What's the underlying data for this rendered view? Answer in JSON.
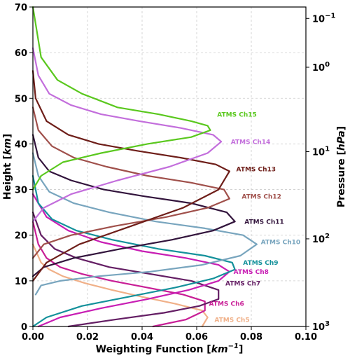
{
  "chart_data": {
    "type": "line",
    "xlabel_main": "Weighting Function [",
    "xlabel_unit": "km",
    "xlabel_sup": "−1",
    "xlabel_end": "]",
    "ylabel_main": "Height [",
    "ylabel_unit": "km",
    "ylabel_end": "]",
    "y2label_main": "Pressure [",
    "y2label_unit": "hPa",
    "y2label_end": "]",
    "xlim": [
      0.0,
      0.1
    ],
    "ylim": [
      0,
      70
    ],
    "grid": true,
    "x_ticks": [
      "0.00",
      "0.02",
      "0.04",
      "0.06",
      "0.08",
      "0.10"
    ],
    "x_tick_values": [
      0.0,
      0.02,
      0.04,
      0.06,
      0.08,
      0.1
    ],
    "y_ticks": [
      "0",
      "10",
      "20",
      "30",
      "40",
      "50",
      "60",
      "70"
    ],
    "y_tick_values": [
      0,
      10,
      20,
      30,
      40,
      50,
      60,
      70
    ],
    "pressure_ticks": [
      {
        "base": "10",
        "exp": "−1",
        "height": 67.5
      },
      {
        "base": "10",
        "exp": "0",
        "height": 56.8
      },
      {
        "base": "10",
        "exp": "1",
        "height": 38.3
      },
      {
        "base": "10",
        "exp": "2",
        "height": 19.2
      },
      {
        "base": "10",
        "exp": "3",
        "height": 0
      }
    ],
    "series": [
      {
        "name": "ATMS Ch5",
        "color": "#f0b088",
        "label_x": 0.0665,
        "label_y": 1.0,
        "x": [
          0.062,
          0.064,
          0.062,
          0.052,
          0.04,
          0.029,
          0.019,
          0.011,
          0.006,
          0.003,
          0.0
        ],
        "y": [
          0,
          2,
          3.5,
          5,
          6.5,
          8,
          9.5,
          11,
          12.5,
          14,
          18
        ]
      },
      {
        "name": "ATMS Ch6",
        "color": "#c81e96",
        "label_x": 0.0645,
        "label_y": 4.5,
        "x": [
          0.044,
          0.056,
          0.063,
          0.063,
          0.055,
          0.042,
          0.029,
          0.018,
          0.01,
          0.005,
          0.002,
          0.0
        ],
        "y": [
          0,
          1.5,
          3.5,
          5.5,
          7,
          8.5,
          10,
          11.5,
          13,
          15,
          18,
          23
        ]
      },
      {
        "name": "ATMS Ch7",
        "color": "#641e64",
        "label_x": 0.0705,
        "label_y": 9.0,
        "x": [
          0.013,
          0.03,
          0.048,
          0.061,
          0.068,
          0.068,
          0.058,
          0.043,
          0.028,
          0.016,
          0.008,
          0.003,
          0.0
        ],
        "y": [
          0,
          1.5,
          3,
          4.5,
          6,
          8,
          10,
          11.5,
          13,
          15,
          17,
          20,
          25
        ]
      },
      {
        "name": "ATMS Ch8",
        "color": "#c81eb4",
        "label_x": 0.0735,
        "label_y": 11.5,
        "x": [
          0.002,
          0.01,
          0.025,
          0.042,
          0.057,
          0.068,
          0.072,
          0.068,
          0.056,
          0.04,
          0.025,
          0.013,
          0.005,
          0.0
        ],
        "y": [
          0,
          2,
          4,
          6,
          8,
          10,
          12,
          13.5,
          15,
          16.5,
          18.5,
          21,
          24,
          29
        ]
      },
      {
        "name": "ATMS Ch9",
        "color": "#14919b",
        "label_x": 0.077,
        "label_y": 13.5,
        "x": [
          0.0,
          0.005,
          0.018,
          0.035,
          0.052,
          0.066,
          0.074,
          0.073,
          0.063,
          0.046,
          0.029,
          0.016,
          0.007,
          0.002,
          0.0
        ],
        "y": [
          0,
          2,
          4.5,
          6.5,
          8.5,
          10.5,
          12.5,
          14,
          15.5,
          17,
          19,
          21,
          23.5,
          27,
          33
        ]
      },
      {
        "name": "ATMS Ch10",
        "color": "#78a5be",
        "label_x": 0.0835,
        "label_y": 18.0,
        "x": [
          0.001,
          0.003,
          0.01,
          0.024,
          0.043,
          0.062,
          0.076,
          0.082,
          0.077,
          0.063,
          0.045,
          0.028,
          0.015,
          0.006,
          0.002,
          0.0
        ],
        "y": [
          7,
          9,
          10,
          11,
          12,
          13.5,
          15.5,
          18,
          20,
          21.5,
          23,
          25,
          27,
          29.5,
          33,
          38
        ]
      },
      {
        "name": "ATMS Ch11",
        "color": "#32143c",
        "label_x": 0.0775,
        "label_y": 22.5,
        "x": [
          0.0,
          0.004,
          0.015,
          0.032,
          0.051,
          0.066,
          0.074,
          0.071,
          0.058,
          0.041,
          0.026,
          0.014,
          0.006,
          0.002,
          0.0
        ],
        "y": [
          11,
          13,
          15,
          17,
          19,
          21,
          23,
          25,
          27,
          28.5,
          30,
          32,
          34,
          37,
          42
        ]
      },
      {
        "name": "ATMS Ch12",
        "color": "#a0504b",
        "label_x": 0.0765,
        "label_y": 28.0,
        "x": [
          0.0,
          0.004,
          0.014,
          0.03,
          0.049,
          0.064,
          0.072,
          0.07,
          0.058,
          0.042,
          0.027,
          0.015,
          0.007,
          0.002,
          0.0
        ],
        "y": [
          15,
          18,
          20,
          22,
          24,
          26,
          28,
          30,
          31.5,
          33,
          35,
          37,
          39.5,
          43,
          48
        ]
      },
      {
        "name": "ATMS Ch13",
        "color": "#6e1e19",
        "label_x": 0.0745,
        "label_y": 34.0,
        "x": [
          0.0,
          0.005,
          0.017,
          0.036,
          0.055,
          0.068,
          0.072,
          0.067,
          0.054,
          0.038,
          0.024,
          0.013,
          0.005,
          0.001,
          0.0
        ],
        "y": [
          10,
          14,
          18,
          22,
          26,
          30,
          34,
          35.5,
          37,
          38.5,
          40,
          42,
          45,
          50,
          56
        ]
      },
      {
        "name": "ATMS Ch14",
        "color": "#c36edc",
        "label_x": 0.0725,
        "label_y": 40.0,
        "x": [
          0.0,
          0.004,
          0.014,
          0.031,
          0.05,
          0.064,
          0.069,
          0.066,
          0.054,
          0.039,
          0.025,
          0.014,
          0.006,
          0.002,
          0.0
        ],
        "y": [
          23,
          26,
          29,
          32,
          35,
          38,
          40.5,
          42,
          43.5,
          45,
          46.5,
          48.5,
          51,
          55,
          61
        ]
      },
      {
        "name": "ATMS Ch15",
        "color": "#5ac81e",
        "label_x": 0.0675,
        "label_y": 46.0,
        "x": [
          0.0,
          0.003,
          0.011,
          0.025,
          0.042,
          0.058,
          0.065,
          0.064,
          0.058,
          0.046,
          0.031,
          0.018,
          0.009,
          0.003,
          0.0
        ],
        "y": [
          30,
          33,
          36,
          38,
          40,
          41.5,
          43,
          44,
          45,
          46.5,
          48,
          51,
          54,
          59,
          70
        ]
      }
    ]
  }
}
